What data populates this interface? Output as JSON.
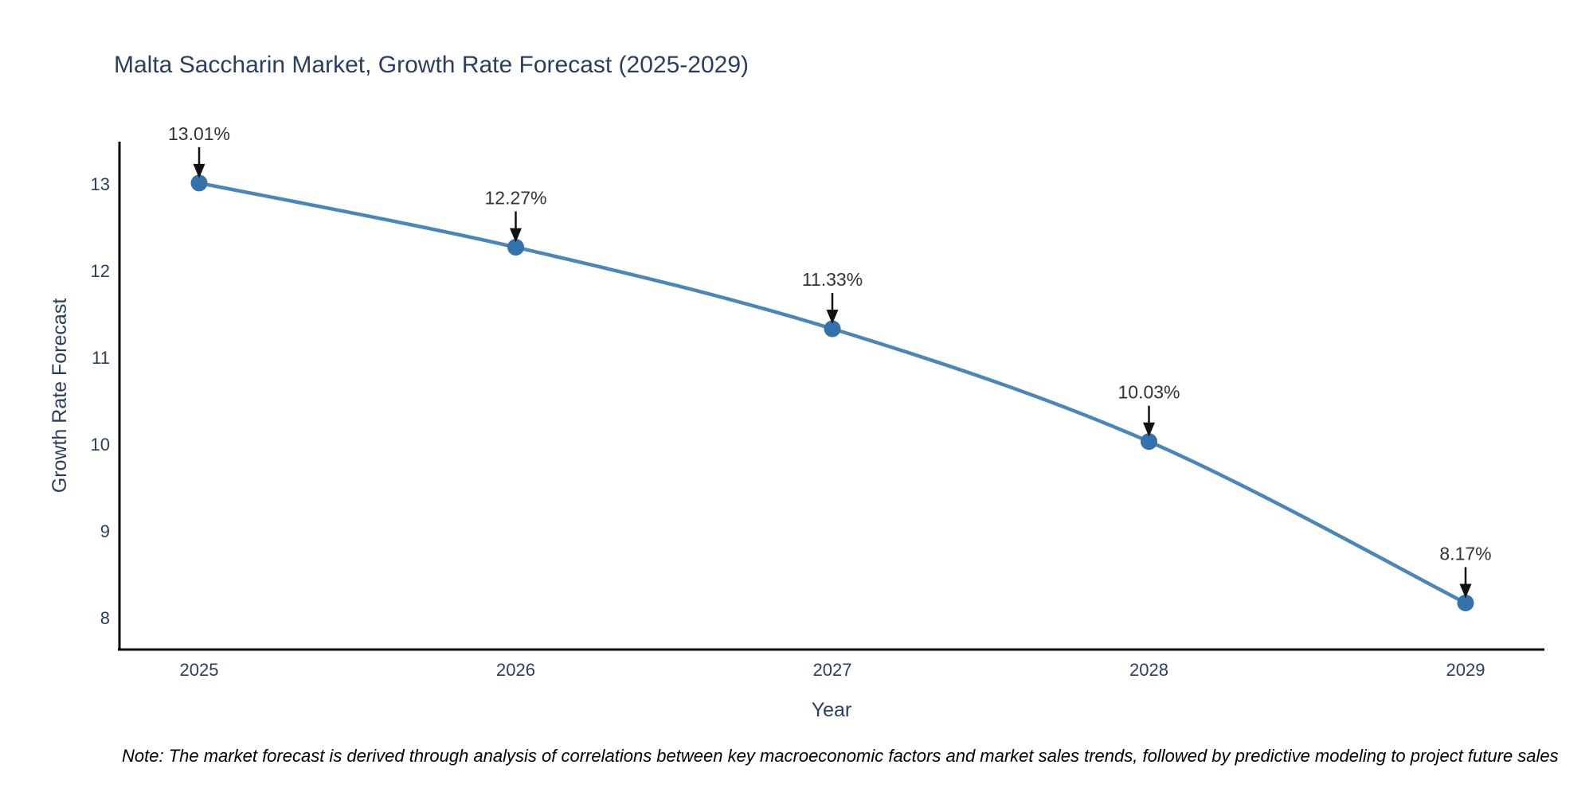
{
  "chart_data": {
    "type": "line",
    "title": "Malta Saccharin Market, Growth Rate Forecast (2025-2029)",
    "xlabel": "Year",
    "ylabel": "Growth Rate Forecast",
    "x": [
      2025,
      2026,
      2027,
      2028,
      2029
    ],
    "values": [
      13.01,
      12.27,
      11.33,
      10.03,
      8.17
    ],
    "point_labels": [
      "13.01%",
      "12.27%",
      "11.33%",
      "10.03%",
      "8.17%"
    ],
    "x_tick_labels": [
      "2025",
      "2026",
      "2027",
      "2028",
      "2029"
    ],
    "y_ticks": [
      13,
      12,
      11,
      10,
      9,
      8
    ],
    "ylim": [
      7.63,
      13.85
    ],
    "grid": false,
    "legend": "none",
    "line_shape": "spline",
    "note": "Note: The market forecast is derived through analysis of correlations between key macroeconomic factors and market sales trends, followed by predictive modeling to project future sales",
    "colors": {
      "line": "#4a86b8",
      "marker": "#3372ab",
      "axis": "#000000",
      "title_text": "#2a3f5f",
      "tick_text": "#2a3f5f",
      "annotation_text": "#333333",
      "annotation_arrow": "#111111",
      "background": "#ffffff"
    }
  }
}
